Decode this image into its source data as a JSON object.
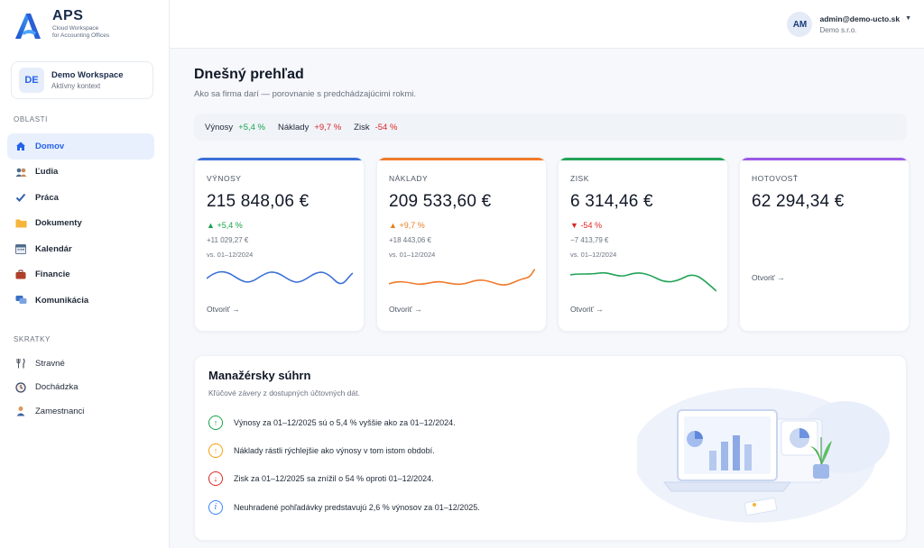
{
  "brand": {
    "name": "APS",
    "tagline_line1": "Cloud Workspace",
    "tagline_line2": "for Accounting Offices"
  },
  "workspace": {
    "badge": "DE",
    "name": "Demo Workspace",
    "subtitle": "Aktívny kontext"
  },
  "sidebar": {
    "section_areas": "OBLASTI",
    "items": [
      {
        "label": "Domov",
        "icon": "home-icon",
        "active": true
      },
      {
        "label": "Ľudia",
        "icon": "people-icon"
      },
      {
        "label": "Práca",
        "icon": "check-icon"
      },
      {
        "label": "Dokumenty",
        "icon": "folder-icon"
      },
      {
        "label": "Kalendár",
        "icon": "calendar-icon"
      },
      {
        "label": "Financie",
        "icon": "briefcase-icon"
      },
      {
        "label": "Komunikácia",
        "icon": "chat-icon"
      }
    ],
    "section_shortcuts": "SKRATKY",
    "shortcuts": [
      {
        "label": "Stravné",
        "icon": "fork-knife-icon"
      },
      {
        "label": "Dochádzka",
        "icon": "clock-icon"
      },
      {
        "label": "Zamestnanci",
        "icon": "person-icon"
      }
    ]
  },
  "user": {
    "initials": "AM",
    "email": "admin@demo-ucto.sk",
    "org": "Demo s.r.o."
  },
  "page": {
    "title": "Dnešný prehľad",
    "subtitle": "Ako sa firma darí — porovnanie s predchádzajúcimi rokmi."
  },
  "summary": {
    "revenue_label": "Výnosy",
    "revenue_val": "+5,4 %",
    "costs_label": "Náklady",
    "costs_val": "+9,7 %",
    "profit_label": "Zisk",
    "profit_val": "-54 %"
  },
  "cards": [
    {
      "title": "VÝNOSY",
      "value": "215 848,06 €",
      "change": "+5,4 %",
      "abs": "+11 029,27 €",
      "vs": "vs. 01–12/2024",
      "open": "Otvoriť →",
      "color": "#3b6fd8",
      "trend": "up"
    },
    {
      "title": "NÁKLADY",
      "value": "209 533,60 €",
      "change": "+9,7 %",
      "abs": "+18 443,06 €",
      "vs": "vs. 01–12/2024",
      "open": "Otvoriť →",
      "color": "#f07a2a",
      "trend": "up"
    },
    {
      "title": "ZISK",
      "value": "6 314,46 €",
      "change": "-54 %",
      "abs": "−7 413,79 €",
      "vs": "vs. 01–12/2024",
      "open": "Otvoriť →",
      "color": "#22a355",
      "trend": "down"
    },
    {
      "title": "HOTOVOSŤ",
      "value": "62 294,34 €",
      "open": "Otvoriť →",
      "color": "#9b59e6"
    }
  ],
  "manager": {
    "title": "Manažérsky súhrn",
    "subtitle": "Kľúčové závery z dostupných účtovných dát.",
    "items": [
      {
        "text": "Výnosy za 01–12/2025 sú o 5,4 % vyššie ako za 01–12/2024.",
        "icon": "arrow-up-icon",
        "color": "#16a34a"
      },
      {
        "text": "Náklady rástli rýchlejšie ako výnosy v tom istom období.",
        "icon": "arrow-up-icon",
        "color": "#f59e0b"
      },
      {
        "text": "Zisk za 01–12/2025 sa znížil o 54 % oproti 01–12/2024.",
        "icon": "arrow-down-icon",
        "color": "#dc2626"
      },
      {
        "text": "Neuhradené pohľadávky predstavujú 2,6 % výnosov za 01–12/2025.",
        "icon": "info-icon",
        "color": "#3b82f6"
      }
    ]
  }
}
